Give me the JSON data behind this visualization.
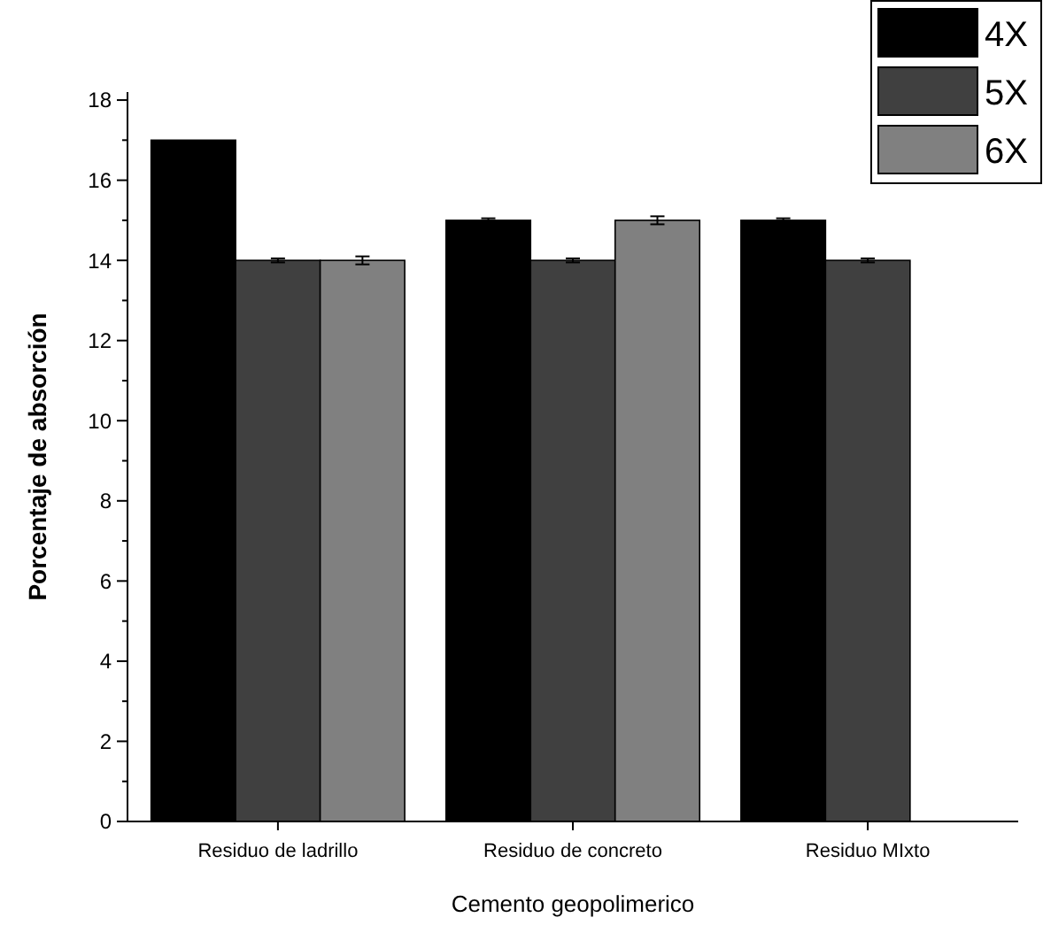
{
  "chart_data": {
    "type": "bar",
    "xlabel": "Cemento geopolimerico",
    "ylabel": "Porcentaje de absorción",
    "categories": [
      "Residuo de ladrillo",
      "Residuo de concreto",
      "Residuo MIxto"
    ],
    "series": [
      {
        "name": "4X",
        "color": "#000000",
        "values": [
          17,
          15,
          15
        ],
        "errors": [
          null,
          0.05,
          0.05
        ]
      },
      {
        "name": "5X",
        "color": "#404040",
        "values": [
          14,
          14,
          14
        ],
        "errors": [
          0.05,
          0.05,
          0.05
        ]
      },
      {
        "name": "6X",
        "color": "#808080",
        "values": [
          14,
          15,
          null
        ],
        "errors": [
          0.1,
          0.1,
          null
        ]
      }
    ],
    "ylim": [
      0,
      18.2
    ],
    "yticks": [
      0,
      {
        "value": 1,
        "label": null
      },
      2,
      {
        "value": 3,
        "label": null
      },
      4,
      {
        "value": 5,
        "label": null
      },
      6,
      {
        "value": 7,
        "label": null
      },
      8,
      {
        "value": 9,
        "label": null
      },
      10,
      {
        "value": 11,
        "label": null
      },
      12,
      {
        "value": 13,
        "label": null
      },
      14,
      {
        "value": 15,
        "label": null
      },
      16,
      {
        "value": 17,
        "label": null
      },
      18
    ],
    "legend": "top right",
    "grid": false
  }
}
